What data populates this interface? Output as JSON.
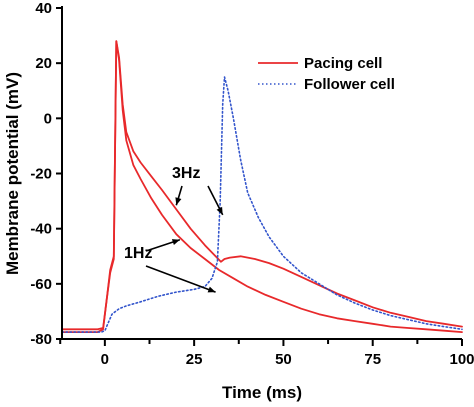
{
  "chart_data": {
    "type": "line",
    "xlabel": "Time (ms)",
    "ylabel": "Membrane potential (mV)",
    "xlim": [
      -12,
      100
    ],
    "ylim": [
      -80,
      40
    ],
    "x_ticks": [
      0,
      25,
      50,
      75,
      100
    ],
    "y_ticks": [
      -80,
      -60,
      -40,
      -20,
      0,
      20,
      40
    ],
    "grid": false,
    "legend_position": "top-right",
    "legend": [
      {
        "label": "Pacing cell",
        "color": "#e8292b",
        "style": "solid"
      },
      {
        "label": "Follower cell",
        "color": "#3355cc",
        "style": "dotted"
      }
    ],
    "annotations": [
      {
        "text": "3Hz",
        "targets": [
          [
            20,
            -31.5
          ],
          [
            33,
            -35
          ]
        ]
      },
      {
        "text": "1Hz",
        "targets": [
          [
            21,
            -44
          ],
          [
            31,
            -63
          ]
        ]
      }
    ],
    "series": [
      {
        "name": "Pacing cell",
        "trace": "3Hz",
        "color": "#e8292b",
        "style": "solid",
        "x": [
          -12,
          -2,
          -0.5,
          0.5,
          1.5,
          2.5,
          3.2,
          4,
          5,
          6,
          8,
          10,
          13,
          16,
          20,
          24,
          28,
          31,
          32.5,
          33.5,
          35,
          38,
          42,
          46,
          50,
          55,
          60,
          65,
          70,
          75,
          80,
          85,
          90,
          95,
          100
        ],
        "y": [
          -76.5,
          -76.5,
          -76,
          -66,
          -55,
          -50,
          28,
          22,
          5,
          -5,
          -12,
          -16,
          -21,
          -26,
          -33,
          -40,
          -46,
          -50,
          -52,
          -51,
          -50.5,
          -50,
          -51,
          -52.5,
          -54.5,
          -57.5,
          -60.5,
          -63.5,
          -66,
          -68.5,
          -70.5,
          -72,
          -73.5,
          -74.5,
          -75.5
        ]
      },
      {
        "name": "Pacing cell",
        "trace": "1Hz",
        "color": "#e8292b",
        "style": "solid",
        "x": [
          -12,
          -2,
          -0.5,
          0.5,
          1.5,
          2.5,
          3.2,
          4,
          5,
          6,
          8,
          10,
          13,
          16,
          20,
          24,
          28,
          32,
          36,
          40,
          45,
          50,
          55,
          60,
          65,
          70,
          75,
          80,
          85,
          90,
          95,
          100
        ],
        "y": [
          -77.5,
          -77.5,
          -76.5,
          -66,
          -56,
          -51,
          28,
          21,
          3,
          -8,
          -17,
          -22,
          -29,
          -35,
          -42,
          -47,
          -51,
          -55,
          -58,
          -61,
          -64,
          -66.5,
          -69,
          -71,
          -72.5,
          -73.5,
          -74.5,
          -75.5,
          -76,
          -76.5,
          -77,
          -77.5
        ]
      },
      {
        "name": "Follower cell",
        "color": "#3355cc",
        "style": "dotted",
        "x": [
          -12,
          -1,
          0,
          1,
          2,
          4,
          6,
          10,
          15,
          20,
          25,
          28,
          30,
          31.5,
          32.3,
          33,
          33.5,
          34.5,
          36,
          38,
          40,
          43,
          46,
          50,
          55,
          60,
          65,
          70,
          75,
          80,
          85,
          90,
          95,
          100
        ],
        "y": [
          -77.5,
          -77.5,
          -77,
          -74,
          -71,
          -69,
          -68,
          -66.5,
          -64.5,
          -63,
          -62,
          -61,
          -58,
          -52,
          -30,
          5,
          15,
          10,
          0,
          -15,
          -27,
          -36,
          -43,
          -50,
          -56,
          -60,
          -64,
          -67,
          -69.5,
          -71.5,
          -73,
          -74.5,
          -75.5,
          -76.5
        ]
      }
    ]
  }
}
